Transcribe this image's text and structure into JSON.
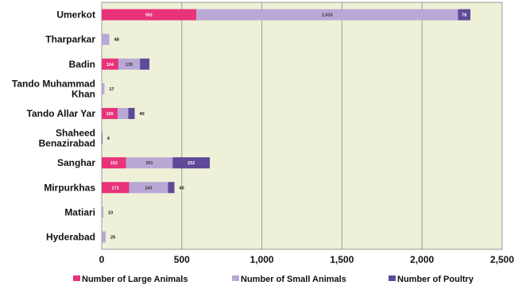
{
  "chart_data": {
    "type": "bar",
    "orientation": "horizontal",
    "stacked": true,
    "categories": [
      "Umerkot",
      "Tharparkar",
      "Badin",
      "Tando Muhammad Khan",
      "Tando Allar Yar",
      "Shaheed Benazirabad",
      "Sanghar",
      "Mirpurkhas",
      "Matiari",
      "Hyderabad"
    ],
    "series": [
      {
        "name": "Number of Large Animals",
        "color": "#e8327a",
        "values": [
          591,
          null,
          104,
          null,
          100,
          null,
          152,
          171,
          null,
          null
        ],
        "labels": [
          "591",
          "",
          "104",
          "",
          "100",
          "",
          "152",
          "171",
          "",
          ""
        ]
      },
      {
        "name": "Number of Small Animals",
        "color": "#b9a7d6",
        "values": [
          1633,
          48,
          135,
          17,
          66,
          null,
          291,
          243,
          10,
          25
        ],
        "labels": [
          "1,633",
          "48",
          "135",
          "17",
          "66",
          "",
          "291",
          "243",
          "10",
          "25"
        ]
      },
      {
        "name": "Number of Poultry",
        "color": "#5e4a98",
        "values": [
          78,
          null,
          59,
          null,
          40,
          4,
          232,
          40,
          null,
          null
        ],
        "labels": [
          "78",
          "",
          "59",
          "",
          "40",
          "",
          "232",
          "40",
          "",
          ""
        ]
      }
    ],
    "outside_labels": [
      "",
      "48",
      "",
      "17",
      "40",
      "4",
      "",
      "40",
      "10",
      "25"
    ],
    "xlim": [
      0,
      2500
    ],
    "xticks": [
      0,
      500,
      1000,
      1500,
      2000,
      2500
    ],
    "xtick_labels": [
      "0",
      "500",
      "1,000",
      "1,500",
      "2,000",
      "2,500"
    ],
    "grid": true,
    "plot_background": "#eef0d8",
    "legend_position": "bottom"
  }
}
